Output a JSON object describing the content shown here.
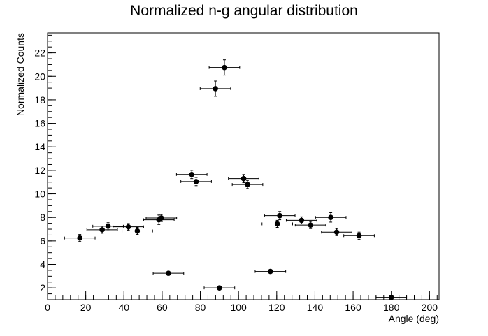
{
  "chart_data": {
    "type": "scatter",
    "title": "Normalized n-g angular distribution",
    "xlabel": "Angle (deg)",
    "ylabel": "Normalized Counts",
    "xlim": [
      0,
      205
    ],
    "ylim": [
      1.0,
      23.7
    ],
    "x_major_ticks": [
      0,
      20,
      40,
      60,
      80,
      100,
      120,
      140,
      160,
      180,
      200
    ],
    "x_minor_step": 4,
    "y_major_ticks": [
      2,
      4,
      6,
      8,
      10,
      12,
      14,
      16,
      18,
      20,
      22
    ],
    "y_minor_step": 0.5,
    "grid": false,
    "legend": "none",
    "marker_color": "#000000",
    "points": [
      {
        "x": 16.9,
        "xerr": 8.0,
        "y": 6.25,
        "yerr": 0.3
      },
      {
        "x": 28.6,
        "xerr": 8.0,
        "y": 6.95,
        "yerr": 0.3
      },
      {
        "x": 31.7,
        "xerr": 8.0,
        "y": 7.25,
        "yerr": 0.3
      },
      {
        "x": 42.3,
        "xerr": 8.0,
        "y": 7.2,
        "yerr": 0.28
      },
      {
        "x": 47.0,
        "xerr": 8.0,
        "y": 6.85,
        "yerr": 0.3
      },
      {
        "x": 58.3,
        "xerr": 8.0,
        "y": 7.8,
        "yerr": 0.4
      },
      {
        "x": 59.6,
        "xerr": 8.0,
        "y": 7.95,
        "yerr": 0.3
      },
      {
        "x": 63.3,
        "xerr": 8.0,
        "y": 3.25,
        "yerr": 0.12
      },
      {
        "x": 75.5,
        "xerr": 8.0,
        "y": 11.65,
        "yerr": 0.35
      },
      {
        "x": 77.8,
        "xerr": 8.0,
        "y": 11.05,
        "yerr": 0.35
      },
      {
        "x": 87.9,
        "xerr": 8.0,
        "y": 18.95,
        "yerr": 0.65
      },
      {
        "x": 90.0,
        "xerr": 8.0,
        "y": 2.0,
        "yerr": 0.1
      },
      {
        "x": 92.6,
        "xerr": 8.0,
        "y": 20.75,
        "yerr": 0.65
      },
      {
        "x": 102.7,
        "xerr": 8.0,
        "y": 11.3,
        "yerr": 0.35
      },
      {
        "x": 104.7,
        "xerr": 8.0,
        "y": 10.8,
        "yerr": 0.35
      },
      {
        "x": 116.7,
        "xerr": 8.0,
        "y": 3.4,
        "yerr": 0.12
      },
      {
        "x": 120.3,
        "xerr": 8.0,
        "y": 7.45,
        "yerr": 0.3
      },
      {
        "x": 121.6,
        "xerr": 8.0,
        "y": 8.15,
        "yerr": 0.35
      },
      {
        "x": 133.0,
        "xerr": 8.0,
        "y": 7.75,
        "yerr": 0.3
      },
      {
        "x": 137.7,
        "xerr": 8.0,
        "y": 7.35,
        "yerr": 0.3
      },
      {
        "x": 148.3,
        "xerr": 8.0,
        "y": 8.0,
        "yerr": 0.4
      },
      {
        "x": 151.4,
        "xerr": 8.0,
        "y": 6.75,
        "yerr": 0.3
      },
      {
        "x": 163.1,
        "xerr": 8.0,
        "y": 6.45,
        "yerr": 0.3
      },
      {
        "x": 180.0,
        "xerr": 8.0,
        "y": 1.2,
        "yerr": 0.08
      }
    ]
  }
}
